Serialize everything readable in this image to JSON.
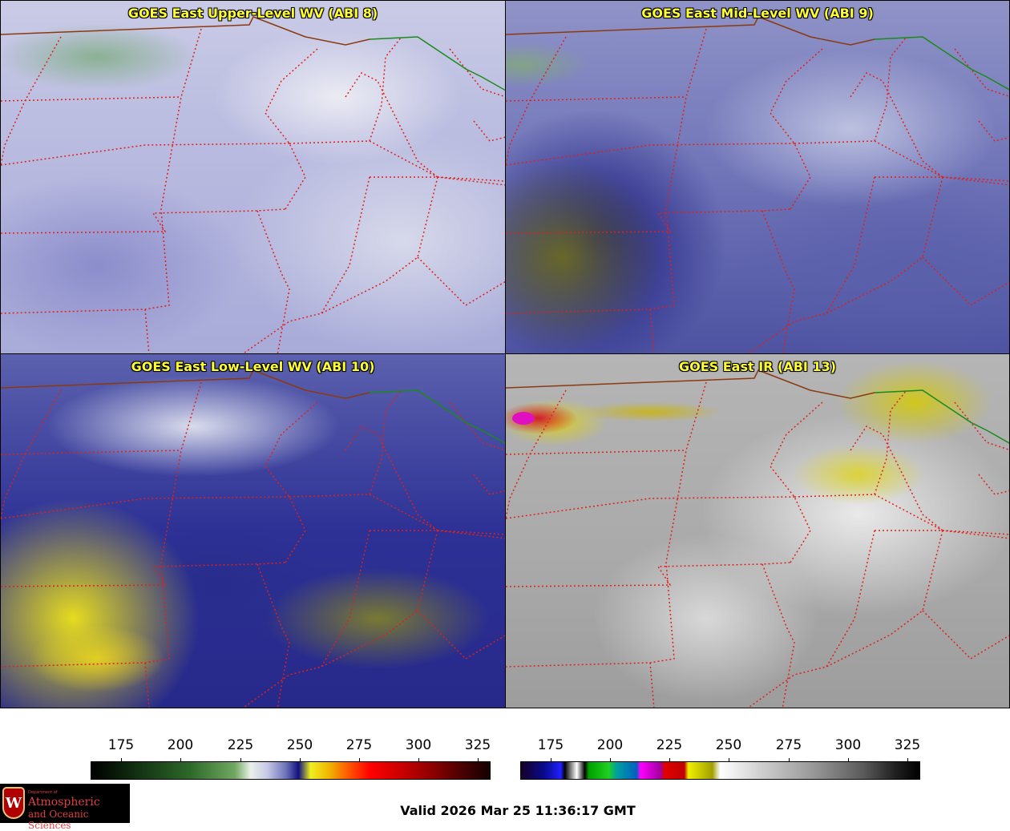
{
  "panels": [
    {
      "title": "GOES East Upper-Level WV (ABI 8)"
    },
    {
      "title": "GOES East Mid-Level WV (ABI 9)"
    },
    {
      "title": "GOES East Low-Level WV (ABI 10)"
    },
    {
      "title": "GOES East IR (ABI 13)"
    }
  ],
  "colorbars": [
    {
      "ticks": [
        "175",
        "200",
        "225",
        "250",
        "275",
        "300",
        "325"
      ]
    },
    {
      "ticks": [
        "175",
        "200",
        "225",
        "250",
        "275",
        "300",
        "325"
      ]
    }
  ],
  "logo": {
    "line1": "Department of",
    "line2": "Atmospheric",
    "line3": "and Oceanic Sciences",
    "crest_letter": "W"
  },
  "valid_time": "Valid 2026 Mar 25 11:36:17 GMT"
}
